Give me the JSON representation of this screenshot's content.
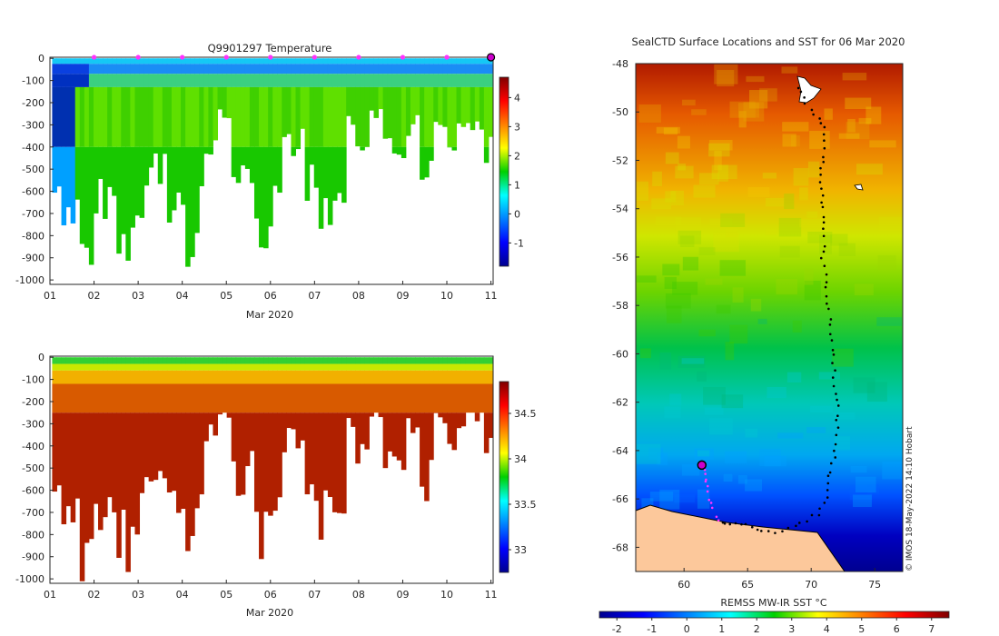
{
  "chart_data": [
    {
      "type": "heatmap",
      "title": "Q9901297  Temperature",
      "xlabel": "Mar 2020",
      "ylabel": "",
      "x_ticks": [
        "01",
        "02",
        "03",
        "04",
        "05",
        "06",
        "07",
        "08",
        "09",
        "10",
        "11"
      ],
      "x_range_days": [
        1,
        11.05
      ],
      "y_ticks": [
        0,
        -100,
        -200,
        -300,
        -400,
        -500,
        -600,
        -700,
        -800,
        -900,
        -1000
      ],
      "ylim": [
        -1020,
        5
      ],
      "colorbar_ticks": [
        4,
        3,
        2,
        1,
        0,
        -1
      ],
      "colorbar_range": [
        -1.8,
        4.7
      ],
      "surface_marker_days": [
        2,
        3,
        4,
        5,
        6,
        7,
        8,
        9,
        10
      ],
      "last_profile_marker_day": 11,
      "colors": {
        "marker": "#ff33ff",
        "last": "#cc00cc"
      }
    },
    {
      "type": "heatmap",
      "title": "",
      "xlabel": "Mar 2020",
      "ylabel": "",
      "x_ticks": [
        "01",
        "02",
        "03",
        "04",
        "05",
        "06",
        "07",
        "08",
        "09",
        "10",
        "11"
      ],
      "x_range_days": [
        1,
        11.05
      ],
      "y_ticks": [
        0,
        -100,
        -200,
        -300,
        -400,
        -500,
        -600,
        -700,
        -800,
        -900,
        -1000
      ],
      "ylim": [
        -1020,
        5
      ],
      "colorbar_ticks": [
        34.5,
        34,
        33.5,
        33
      ],
      "colorbar_range": [
        32.75,
        34.85
      ]
    },
    {
      "type": "heatmap",
      "title": "SealCTD Surface Locations and SST for 06 Mar 2020",
      "xlabel": "",
      "ylabel": "",
      "x_ticks": [
        60,
        65,
        70,
        75
      ],
      "xlim": [
        56.2,
        77.2
      ],
      "y_ticks": [
        -48,
        -50,
        -52,
        -54,
        -56,
        -58,
        -60,
        -62,
        -64,
        -66,
        -68
      ],
      "ylim": [
        -69,
        -48
      ],
      "colorbar_label": "REMSS MW-IR SST °C",
      "colorbar_ticks": [
        -2,
        -1,
        0,
        1,
        2,
        3,
        4,
        5,
        6,
        7
      ],
      "colorbar_range": [
        -2.5,
        7.5
      ],
      "credit": "© IMOS 18-May-2022 14:10 Hobart",
      "colors": {
        "land": "#fcc89b",
        "track": "#000000",
        "recent_track": "#ff33ff"
      }
    }
  ]
}
